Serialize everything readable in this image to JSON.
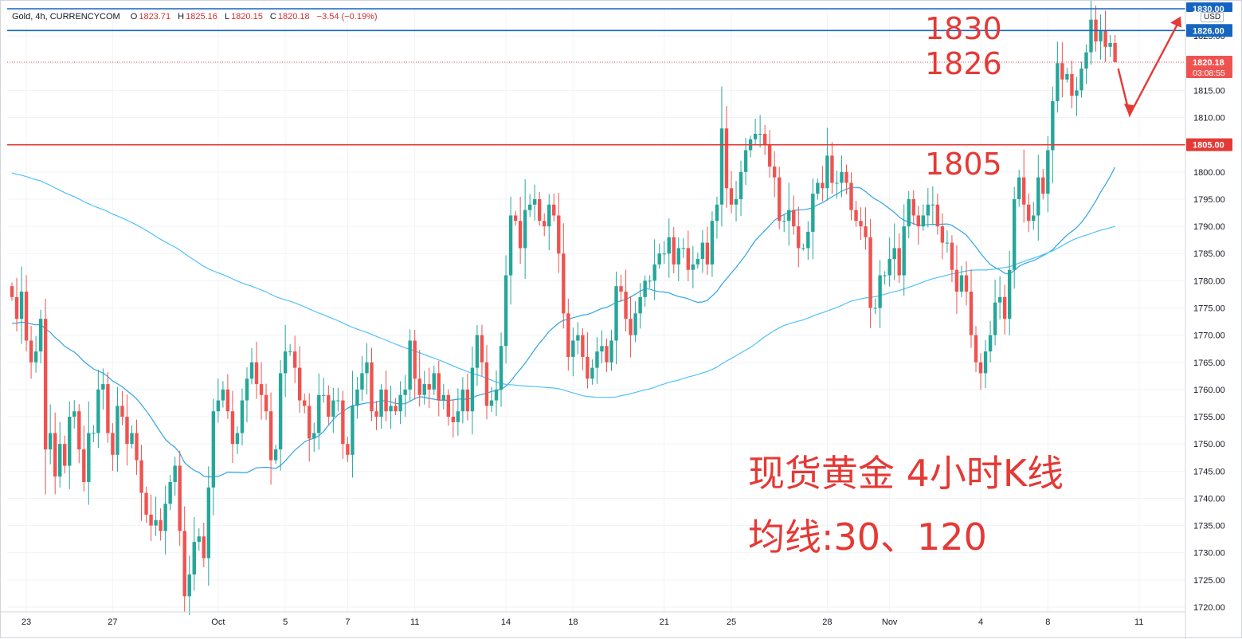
{
  "legend": {
    "symbol": "Gold, 4h, CURRENCYCOM",
    "open_label": "O",
    "open": "1823.71",
    "high_label": "H",
    "high": "1825.16",
    "low_label": "L",
    "low": "1820.15",
    "close_label": "C",
    "close": "1820.18",
    "change": "−3.54 (−0.19%)"
  },
  "currency": "USD",
  "annotations": {
    "level_1830": "1830",
    "level_1826": "1826",
    "level_1805": "1805",
    "title": "现货黄金 4小时K线",
    "ma_note": "均线:30、120"
  },
  "price_tags": {
    "top": "1830.00",
    "blue": "1826.00",
    "last": "1820.18",
    "countdown": "03:08:55",
    "red": "1805.00"
  },
  "colors": {
    "up": "#26a69a",
    "down": "#ef5350",
    "ma30": "#2fa4e7",
    "ma120": "#4fc3f7",
    "resistance_line": "#1565c0",
    "support_line": "#e53935",
    "annotation": "#e53935"
  },
  "chart_data": {
    "type": "candlestick",
    "ylim": [
      1720,
      1830
    ],
    "yticks": [
      1720,
      1725,
      1730,
      1735,
      1740,
      1745,
      1750,
      1755,
      1760,
      1765,
      1770,
      1775,
      1780,
      1785,
      1790,
      1795,
      1800,
      1805,
      1810,
      1815,
      1820,
      1825,
      1830
    ],
    "xticks": [
      {
        "label": "23",
        "bar": 3
      },
      {
        "label": "27",
        "bar": 21
      },
      {
        "label": "Oct",
        "bar": 43
      },
      {
        "label": "5",
        "bar": 57
      },
      {
        "label": "7",
        "bar": 70
      },
      {
        "label": "11",
        "bar": 84
      },
      {
        "label": "14",
        "bar": 103
      },
      {
        "label": "18",
        "bar": 117
      },
      {
        "label": "21",
        "bar": 136
      },
      {
        "label": "25",
        "bar": 150
      },
      {
        "label": "28",
        "bar": 170
      },
      {
        "label": "Nov",
        "bar": 183
      },
      {
        "label": "4",
        "bar": 202
      },
      {
        "label": "8",
        "bar": 216
      },
      {
        "label": "11",
        "bar": 235
      }
    ],
    "horizontal_lines": [
      {
        "value": 1830,
        "color": "#1565c0"
      },
      {
        "value": 1826,
        "color": "#1565c0"
      },
      {
        "value": 1805,
        "color": "#e53935"
      }
    ],
    "last_price": 1820.18,
    "closes": [
      1777,
      1773,
      1778,
      1769,
      1765,
      1767,
      1773,
      1749,
      1752,
      1744,
      1750,
      1746,
      1755,
      1756,
      1749,
      1743,
      1752,
      1752,
      1760,
      1761,
      1752,
      1748,
      1757,
      1755,
      1750,
      1752,
      1747,
      1741,
      1737,
      1735,
      1736,
      1734,
      1739,
      1743,
      1746,
      1734,
      1722,
      1726,
      1732,
      1733,
      1729,
      1742,
      1756,
      1758,
      1760,
      1756,
      1750,
      1752,
      1758,
      1762,
      1765,
      1761,
      1759,
      1756,
      1747,
      1749,
      1763,
      1767,
      1767,
      1764,
      1758,
      1757,
      1751,
      1752,
      1759,
      1759,
      1755,
      1758,
      1758,
      1750,
      1748,
      1757,
      1760,
      1763,
      1765,
      1756,
      1755,
      1760,
      1756,
      1757,
      1756,
      1759,
      1760,
      1769,
      1762,
      1759,
      1761,
      1760,
      1763,
      1758,
      1759,
      1755,
      1754,
      1756,
      1760,
      1756,
      1764,
      1770,
      1765,
      1757,
      1758,
      1760,
      1768,
      1781,
      1792,
      1791,
      1786,
      1793,
      1794,
      1795,
      1791,
      1790,
      1794,
      1792,
      1785,
      1774,
      1766,
      1769,
      1770,
      1766,
      1762,
      1764,
      1767,
      1768,
      1765,
      1769,
      1779,
      1778,
      1773,
      1770,
      1774,
      1777,
      1780,
      1780,
      1783,
      1785,
      1785,
      1788,
      1783,
      1786,
      1786,
      1782,
      1783,
      1784,
      1787,
      1783,
      1791,
      1794,
      1808,
      1797,
      1794,
      1795,
      1800,
      1804,
      1806,
      1807,
      1807,
      1805,
      1801,
      1799,
      1791,
      1791,
      1793,
      1790,
      1786,
      1786,
      1789,
      1796,
      1798,
      1797,
      1803,
      1798,
      1798,
      1800,
      1798,
      1793,
      1791,
      1790,
      1788,
      1775,
      1775,
      1781,
      1781,
      1784,
      1786,
      1781,
      1790,
      1795,
      1792,
      1790,
      1792,
      1794,
      1794,
      1790,
      1787,
      1787,
      1782,
      1778,
      1781,
      1778,
      1770,
      1765,
      1763,
      1767,
      1770,
      1776,
      1777,
      1773,
      1782,
      1795,
      1799,
      1794,
      1791,
      1792,
      1799,
      1796,
      1804,
      1813,
      1820,
      1817,
      1818,
      1814,
      1815,
      1819,
      1822,
      1828,
      1824,
      1826,
      1823,
      1823.71,
      1820.18
    ]
  }
}
